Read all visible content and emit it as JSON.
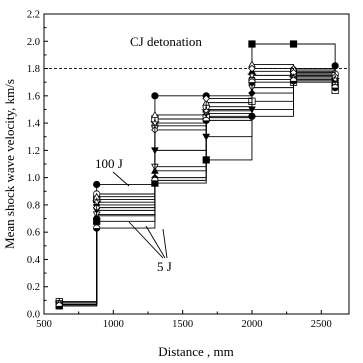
{
  "chart_data": {
    "type": "line",
    "xlabel": "Distance , mm",
    "ylabel": "Mean shock wave velocity, km/s",
    "xlim": [
      500,
      2700
    ],
    "ylim": [
      0.0,
      2.2
    ],
    "xticks": [
      500,
      1000,
      1500,
      2000,
      2500
    ],
    "yticks": [
      0.0,
      0.2,
      0.4,
      0.6,
      0.8,
      1.0,
      1.2,
      1.4,
      1.6,
      1.8,
      2.0,
      2.2
    ],
    "xtick_labels": [
      "500",
      "1000",
      "1500",
      "2000",
      "2500"
    ],
    "ytick_labels": [
      "0.0",
      "0.2",
      "0.4",
      "0.6",
      "0.8",
      "1.0",
      "1.2",
      "1.4",
      "1.6",
      "1.8",
      "2.0",
      "2.2"
    ],
    "grid": false,
    "reference_line": {
      "label": "CJ detonation",
      "y": 1.8,
      "style": "dashed"
    },
    "annotations": [
      {
        "text": "100 J"
      },
      {
        "text": "5 J"
      }
    ],
    "x": [
      610,
      880,
      1300,
      1670,
      2000,
      2300,
      2600
    ],
    "series": [
      {
        "marker": "circle-filled",
        "values": [
          0.08,
          0.95,
          1.6,
          1.6,
          1.45,
          1.78,
          1.82
        ]
      },
      {
        "marker": "square-filled",
        "values": [
          0.06,
          0.68,
          0.96,
          1.13,
          1.98,
          1.98,
          1.68
        ]
      },
      {
        "marker": "triangle-down-filled",
        "values": [
          0.07,
          0.76,
          1.2,
          1.3,
          1.5,
          1.75,
          1.7
        ]
      },
      {
        "marker": "diamond-filled",
        "values": [
          0.09,
          0.8,
          1.0,
          1.45,
          1.62,
          1.72,
          1.75
        ]
      },
      {
        "marker": "triangle-up-filled",
        "values": [
          0.06,
          0.72,
          1.05,
          1.5,
          1.78,
          1.76,
          1.73
        ]
      },
      {
        "marker": "circle-open",
        "values": [
          0.08,
          0.88,
          1.38,
          1.52,
          1.72,
          1.79,
          1.76
        ]
      },
      {
        "marker": "square-open",
        "values": [
          0.09,
          0.84,
          1.43,
          1.44,
          1.56,
          1.7,
          1.64
        ]
      },
      {
        "marker": "triangle-up-open",
        "values": [
          0.07,
          0.86,
          1.46,
          1.55,
          1.83,
          1.8,
          1.7
        ]
      },
      {
        "marker": "triangle-down-open",
        "values": [
          0.08,
          0.73,
          1.08,
          1.47,
          1.66,
          1.74,
          1.68
        ]
      },
      {
        "marker": "diamond-open",
        "values": [
          0.07,
          0.78,
          1.35,
          1.58,
          1.8,
          1.77,
          1.74
        ]
      },
      {
        "marker": "star-open",
        "values": [
          0.08,
          0.82,
          1.4,
          1.49,
          1.75,
          1.73,
          1.72
        ]
      },
      {
        "marker": "circle-half",
        "values": [
          0.06,
          0.63,
          0.98,
          1.42,
          1.7,
          1.71,
          1.66
        ]
      }
    ]
  }
}
